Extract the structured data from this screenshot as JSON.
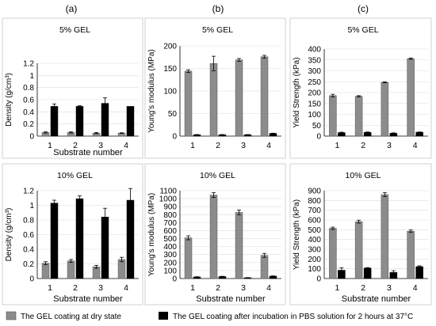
{
  "column_labels": [
    "(a)",
    "(b)",
    "(c)"
  ],
  "colors": {
    "dry": "#8c8c8c",
    "pbs": "#000000",
    "bar_outline": "#555555"
  },
  "legend": [
    {
      "label": "The GEL coating at dry state",
      "color": "#8c8c8c"
    },
    {
      "label": "The GEL coating after incubation in PBS solution for 2 hours at 37°C",
      "color": "#000000"
    }
  ],
  "chart_data": [
    {
      "type": "bar",
      "title": "5% GEL",
      "ylabel": "Density (g/cm³)",
      "xlabel": "Substrate number",
      "categories": [
        "1",
        "2",
        "3",
        "4"
      ],
      "ylim": [
        0,
        1.2
      ],
      "yticks": [
        "0",
        "0.2",
        "0.4",
        "0.6",
        "0.8",
        "1",
        "1.2"
      ],
      "ystep": 0.2,
      "series": [
        {
          "values": [
            0.06,
            0.06,
            0.05,
            0.05
          ],
          "errors": [
            0.01,
            0.01,
            0.01,
            0.005
          ]
        },
        {
          "values": [
            0.49,
            0.49,
            0.54,
            0.49
          ],
          "errors": [
            0.04,
            0.01,
            0.09,
            0.0
          ]
        }
      ]
    },
    {
      "type": "bar",
      "title": "5% GEL",
      "ylabel": "Young's modulus (MPa)",
      "xlabel": "",
      "categories": [
        "1",
        "2",
        "3",
        "4"
      ],
      "ylim": [
        0,
        200
      ],
      "yticks": [
        "0",
        "50",
        "100",
        "150",
        "200"
      ],
      "ystep": 50,
      "series": [
        {
          "values": [
            144,
            161,
            169,
            176
          ],
          "errors": [
            3,
            16,
            3,
            3
          ]
        },
        {
          "values": [
            3,
            3,
            3,
            6
          ],
          "errors": [
            0.5,
            0.5,
            0.5,
            0.5
          ]
        }
      ]
    },
    {
      "type": "bar",
      "title": "5% GEL",
      "ylabel": "Yield Strength (kPa)",
      "xlabel": "",
      "categories": [
        "1",
        "2",
        "3",
        "4"
      ],
      "ylim": [
        0,
        400
      ],
      "yticks": [
        "0",
        "50",
        "100",
        "150",
        "200",
        "250",
        "300",
        "350",
        "400"
      ],
      "ystep": 50,
      "series": [
        {
          "values": [
            186,
            183,
            247,
            356
          ],
          "errors": [
            6,
            3,
            2,
            3
          ]
        },
        {
          "values": [
            16,
            17,
            13,
            18
          ],
          "errors": [
            2,
            2,
            2,
            1
          ]
        }
      ]
    },
    {
      "type": "bar",
      "title": "10% GEL",
      "ylabel": "Density (g/cm³)",
      "xlabel": "Substrate number",
      "categories": [
        "1",
        "2",
        "3",
        "4"
      ],
      "ylim": [
        0,
        1.2
      ],
      "yticks": [
        "0",
        "0.2",
        "0.4",
        "0.6",
        "0.8",
        "1",
        "1.2"
      ],
      "ystep": 0.2,
      "series": [
        {
          "values": [
            0.21,
            0.24,
            0.16,
            0.26
          ],
          "errors": [
            0.02,
            0.02,
            0.02,
            0.03
          ]
        },
        {
          "values": [
            1.03,
            1.09,
            0.84,
            1.07
          ],
          "errors": [
            0.04,
            0.04,
            0.12,
            0.16
          ]
        }
      ]
    },
    {
      "type": "bar",
      "title": "10% GEL",
      "ylabel": "Young's modulus (MPa)",
      "xlabel": "Substrate number",
      "categories": [
        "1",
        "2",
        "3",
        "4"
      ],
      "ylim": [
        0,
        1100
      ],
      "yticks": [
        "0",
        "100",
        "200",
        "300",
        "400",
        "500",
        "600",
        "700",
        "800",
        "900",
        "1000",
        "1100"
      ],
      "ystep": 100,
      "series": [
        {
          "values": [
            510,
            1045,
            828,
            290
          ],
          "errors": [
            25,
            30,
            30,
            25
          ]
        },
        {
          "values": [
            20,
            25,
            10,
            30
          ],
          "errors": [
            3,
            3,
            2,
            3
          ]
        }
      ]
    },
    {
      "type": "bar",
      "title": "10% GEL",
      "ylabel": "Yield Strength (kPa)",
      "xlabel": "Substrate number",
      "categories": [
        "1",
        "2",
        "3",
        "4"
      ],
      "ylim": [
        0,
        900
      ],
      "yticks": [
        "0",
        "100",
        "200",
        "300",
        "400",
        "500",
        "600",
        "700",
        "800",
        "900"
      ],
      "ystep": 100,
      "series": [
        {
          "values": [
            515,
            583,
            860,
            485
          ],
          "errors": [
            12,
            15,
            20,
            12
          ]
        },
        {
          "values": [
            85,
            107,
            62,
            122
          ],
          "errors": [
            25,
            5,
            18,
            8
          ]
        }
      ]
    }
  ]
}
